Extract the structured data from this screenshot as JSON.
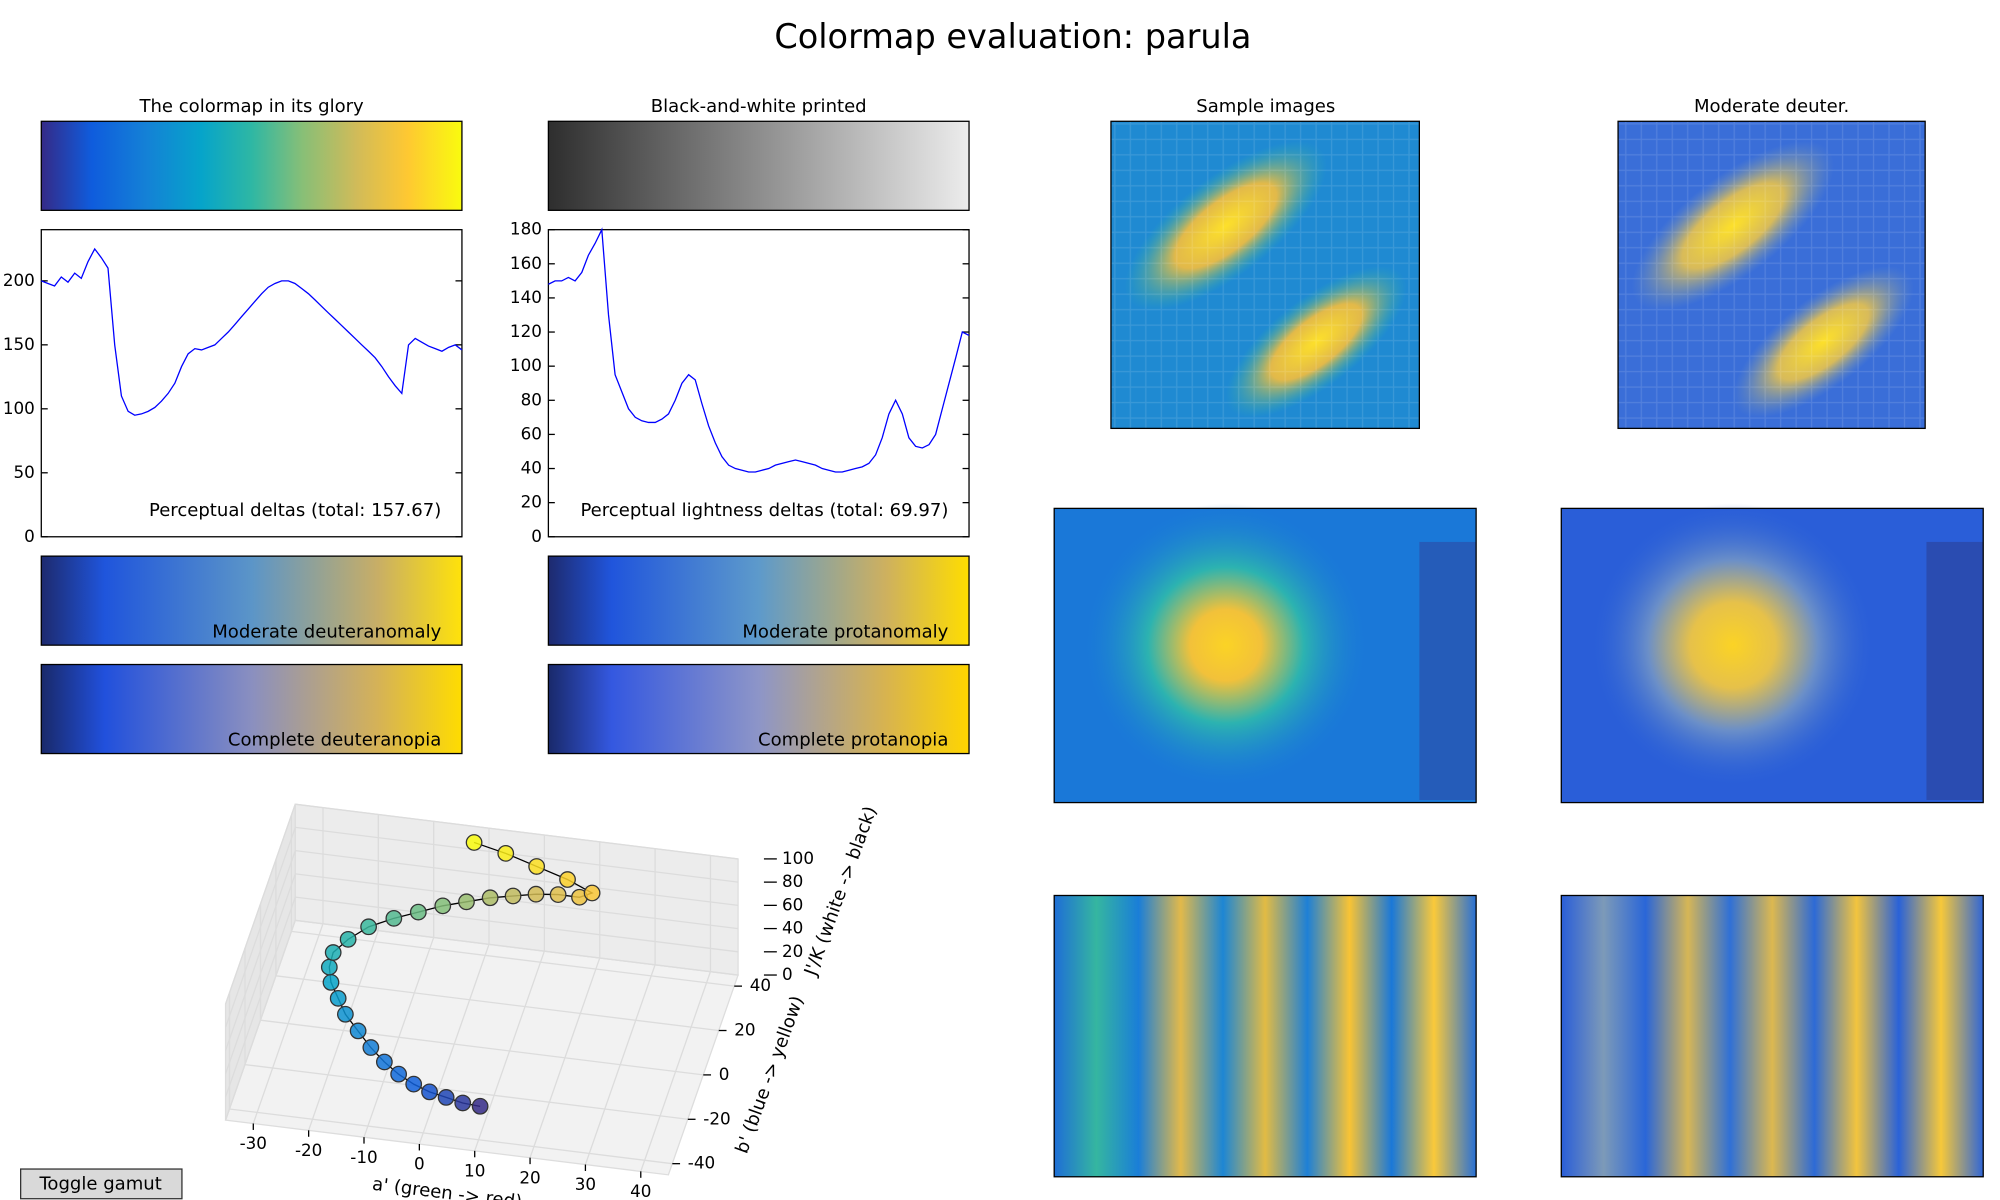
{
  "title": "Colormap evaluation: parula",
  "colorbars": [
    {
      "title": "The colormap in its glory"
    },
    {
      "title": "Black-and-white printed"
    },
    {
      "label": "Moderate deuteranomaly"
    },
    {
      "label": "Moderate protanomaly"
    },
    {
      "label": "Complete deuteranopia"
    },
    {
      "label": "Complete protanopia"
    }
  ],
  "sample_titles": [
    "Sample images",
    "Moderate deuter."
  ],
  "button": "Toggle gamut",
  "chart_data": [
    {
      "type": "line",
      "annotation": "Perceptual deltas (total: 157.67)",
      "color": "#0000ff",
      "values": [
        200,
        198,
        196,
        203,
        199,
        206,
        202,
        215,
        225,
        218,
        210,
        150,
        110,
        98,
        95,
        96,
        98,
        101,
        106,
        112,
        120,
        133,
        143,
        147,
        146,
        148,
        150,
        155,
        160,
        166,
        172,
        178,
        184,
        190,
        195,
        198,
        200,
        200,
        198,
        194,
        190,
        185,
        180,
        175,
        170,
        165,
        160,
        155,
        150,
        145,
        140,
        133,
        125,
        118,
        112,
        150,
        155,
        152,
        149,
        147,
        145,
        148,
        150,
        146
      ],
      "ylim": [
        0,
        240
      ],
      "yticks": [
        0,
        50,
        100,
        150,
        200
      ]
    },
    {
      "type": "line",
      "annotation": "Perceptual lightness deltas (total: 69.97)",
      "color": "#0000ff",
      "values": [
        148,
        150,
        150,
        152,
        150,
        155,
        165,
        172,
        180,
        130,
        95,
        85,
        75,
        70,
        68,
        67,
        67,
        69,
        72,
        80,
        90,
        95,
        92,
        78,
        65,
        55,
        47,
        42,
        40,
        39,
        38,
        38,
        39,
        40,
        42,
        43,
        44,
        45,
        44,
        43,
        42,
        40,
        39,
        38,
        38,
        39,
        40,
        41,
        43,
        48,
        58,
        72,
        80,
        72,
        58,
        53,
        52,
        54,
        60,
        75,
        90,
        105,
        120,
        118
      ],
      "ylim": [
        0,
        180
      ],
      "yticks": [
        0,
        20,
        40,
        60,
        80,
        100,
        120,
        140,
        160,
        180
      ]
    },
    {
      "type": "scatter3d",
      "x_label": "a' (green -> red)",
      "y_label": "b' (blue -> yellow)",
      "z_label": "J'/K (white -> black)",
      "x": [
        10,
        7,
        4,
        1,
        -2,
        -5,
        -8,
        -11,
        -14,
        -17,
        -19,
        -21,
        -22,
        -22,
        -20,
        -17,
        -13,
        -9,
        -5,
        -1,
        3,
        7,
        11,
        15,
        19,
        21,
        16,
        10,
        4,
        -2
      ],
      "y": [
        -38,
        -39,
        -39,
        -39,
        -38,
        -36,
        -33,
        -29,
        -24,
        -19,
        -14,
        -9,
        -4,
        1,
        6,
        11,
        15,
        18,
        21,
        23,
        25,
        26,
        27,
        27,
        26,
        28,
        32,
        35,
        38,
        40
      ],
      "z": [
        25,
        28,
        31,
        34,
        37,
        40,
        43,
        46,
        49,
        52,
        55,
        58,
        61,
        64,
        67,
        70,
        72,
        74,
        76,
        78,
        80,
        82,
        84,
        86,
        88,
        89,
        90,
        92,
        94,
        96
      ],
      "xlim": [
        -35,
        45
      ],
      "ylim": [
        -45,
        45
      ],
      "zlim": [
        0,
        100
      ],
      "xticks": [
        -30,
        -20,
        -10,
        0,
        10,
        20,
        30,
        40
      ],
      "yticks": [
        -40,
        -20,
        0,
        20,
        40
      ],
      "zticks": [
        0,
        20,
        40,
        60,
        80,
        100
      ],
      "colormap": [
        "#352a87",
        "#0f5cdd",
        "#1481d6",
        "#06a4ca",
        "#2eb7a4",
        "#87bf77",
        "#d1bb59",
        "#fec832",
        "#f9fb0e"
      ]
    }
  ]
}
